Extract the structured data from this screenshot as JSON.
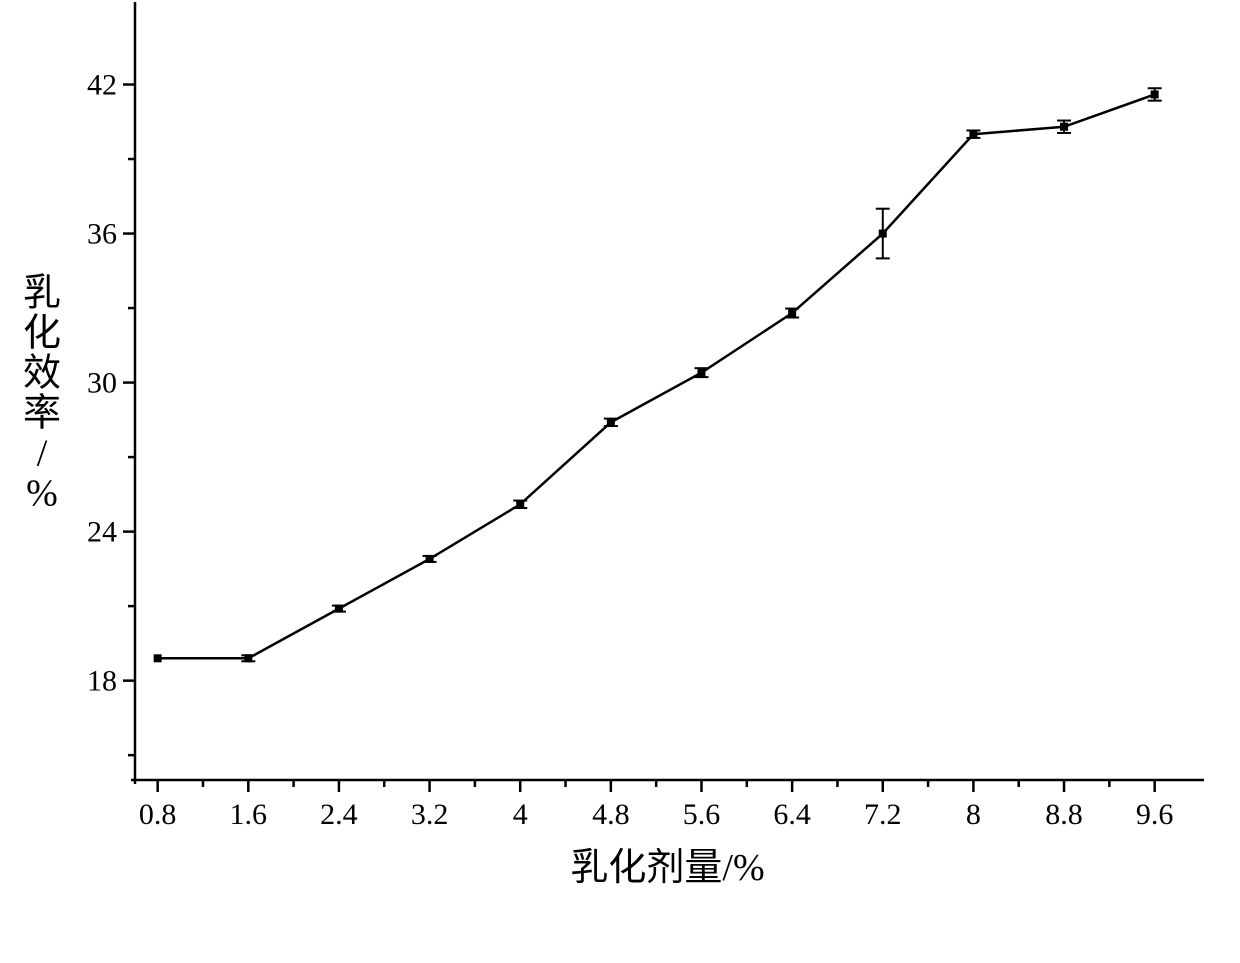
{
  "chart": {
    "type": "line",
    "background_color": "#ffffff",
    "line_color": "#000000",
    "line_width": 2.5,
    "marker_style": "square",
    "marker_size": 4,
    "xlabel": "乳化剂量/%",
    "ylabel": "乳化效率/%",
    "label_fontsize": 38,
    "tick_fontsize": 30,
    "xlim": [
      0.6,
      10.0
    ],
    "ylim": [
      14,
      45
    ],
    "xticks": [
      0.8,
      1.6,
      2.4,
      3.2,
      4,
      4.8,
      5.6,
      6.4,
      7.2,
      8,
      8.8,
      9.6
    ],
    "xtick_labels": [
      "0.8",
      "1.6",
      "2.4",
      "3.2",
      "4",
      "4.8",
      "5.6",
      "6.4",
      "7.2",
      "8",
      "8.8",
      "9.6"
    ],
    "yticks": [
      18,
      24,
      30,
      36,
      42
    ],
    "ytick_labels": [
      "18",
      "24",
      "30",
      "36",
      "42"
    ],
    "grid": false,
    "x": [
      0.8,
      1.6,
      2.4,
      3.2,
      4.0,
      4.8,
      5.6,
      6.4,
      7.2,
      8.0,
      8.8,
      9.6
    ],
    "y": [
      18.9,
      18.9,
      20.9,
      22.9,
      25.1,
      28.4,
      30.4,
      32.8,
      36.0,
      40.0,
      40.3,
      41.6
    ],
    "yerr": [
      0.0,
      0.12,
      0.12,
      0.12,
      0.15,
      0.15,
      0.18,
      0.18,
      1.0,
      0.15,
      0.25,
      0.25
    ],
    "error_cap_width": 14
  }
}
